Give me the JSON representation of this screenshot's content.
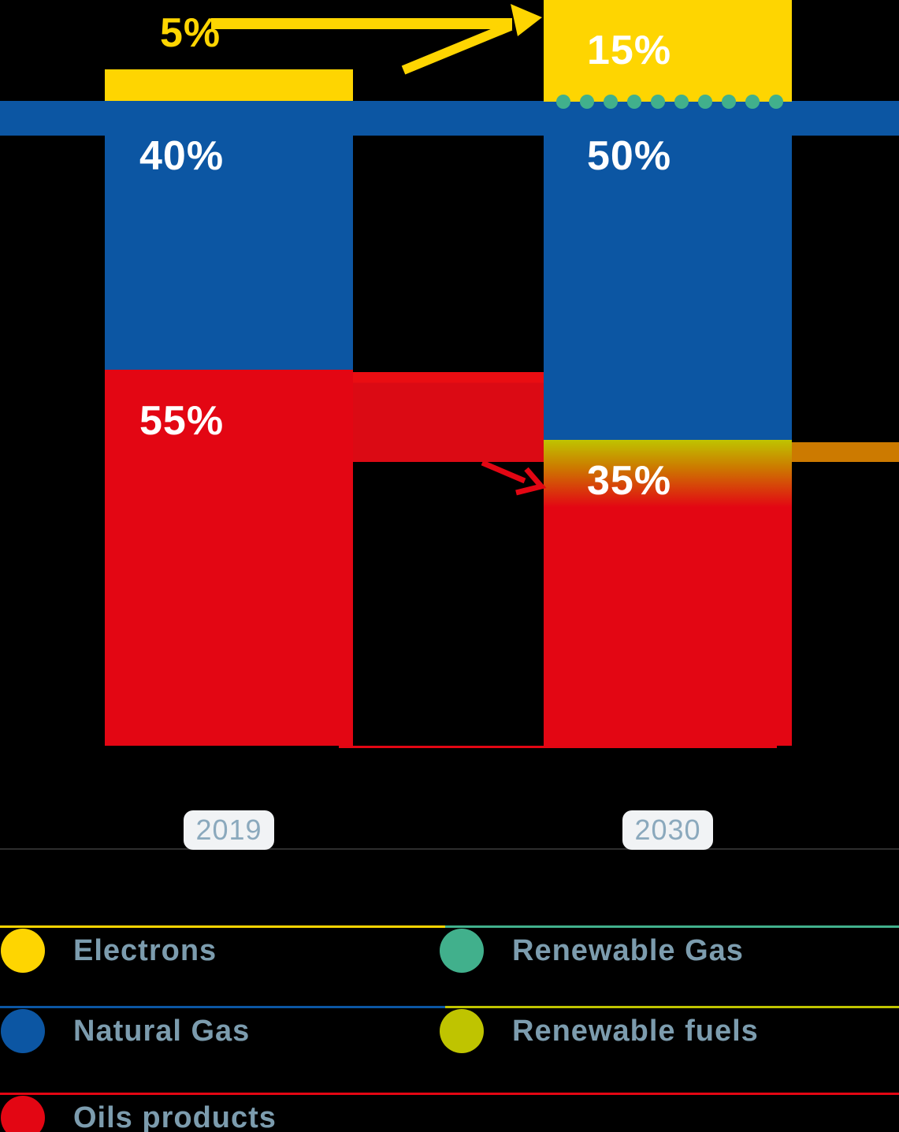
{
  "chart_data": {
    "type": "bar",
    "stacked": true,
    "unit": "%",
    "categories": [
      "2019",
      "2030"
    ],
    "series": [
      {
        "name": "Electrons",
        "color": "#fed501",
        "values": [
          5,
          15
        ]
      },
      {
        "name": "Natural Gas",
        "color": "#0c56a3",
        "values": [
          40,
          50
        ]
      },
      {
        "name": "Oils products",
        "color": "#e30613",
        "values": [
          55,
          35
        ]
      },
      {
        "name": "Renewable Gas",
        "color": "#41b08c",
        "note": "drawn as a row of dots at the bottom of the 2030 Electrons segment"
      },
      {
        "name": "Renewable fuels",
        "color": "#bfc400",
        "note": "drawn as a gradient blended into the top of the 2030 35% segment"
      }
    ],
    "renewable_gas_dots": {
      "count": 10
    },
    "annotations": [
      {
        "type": "arrow",
        "color": "#fed501",
        "from": "2019 Electrons 5%",
        "to": "2030 Electrons 15%"
      },
      {
        "type": "arrow",
        "color": "#e30613",
        "from": "2019 Oils products band",
        "to": "2030 35% segment"
      }
    ],
    "legend_position": "bottom",
    "ylim": [
      0,
      100
    ],
    "grid": false
  },
  "bars": {
    "b2019": {
      "year": "2019",
      "electrons": "5%",
      "natural_gas": "40%",
      "oils": "55%"
    },
    "b2030": {
      "year": "2030",
      "electrons": "15%",
      "natural_gas": "50%",
      "oils_renewables": "35%"
    }
  },
  "legend": {
    "items": [
      {
        "label": "Electrons",
        "color": "#fed501"
      },
      {
        "label": "Renewable Gas",
        "color": "#41b08c"
      },
      {
        "label": "Natural Gas",
        "color": "#0c56a3"
      },
      {
        "label": "Renewable fuels",
        "color": "#bfc400"
      },
      {
        "label": "Oils products",
        "color": "#e30613"
      }
    ]
  },
  "colors": {
    "background": "#000000",
    "yellow": "#fed501",
    "blue": "#0c56a3",
    "red": "#e30613",
    "teal": "#41b08c",
    "chartreuse": "#bfc400",
    "orange": "#cc7a00",
    "legend_text": "#7c9cae",
    "year_text": "#8ba9bd",
    "year_pill_bg": "#f1f3f5"
  }
}
